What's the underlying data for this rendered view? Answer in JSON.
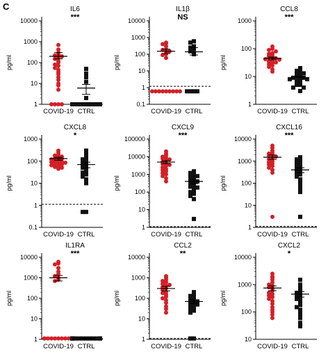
{
  "figure": {
    "panel_letter": "C"
  },
  "chart_data": [
    {
      "type": "scatter",
      "title": "IL6",
      "significance": "***",
      "ylabel": "pg/ml",
      "scale": "log",
      "ylim": [
        1,
        10000
      ],
      "yticks": [
        "1",
        "10",
        "100",
        "1000",
        "10000"
      ],
      "categories": [
        "COVID-19",
        "CTRL"
      ],
      "reference_line": null,
      "series": [
        {
          "name": "COVID-19",
          "color": "#d42027",
          "marker": "circle",
          "values": [
            700,
            420,
            300,
            240,
            220,
            200,
            180,
            150,
            120,
            100,
            80,
            70,
            55,
            45,
            35,
            28,
            20,
            15,
            10,
            8,
            5,
            1,
            1,
            1,
            1
          ],
          "mean": 200,
          "sem": [
            150,
            300
          ]
        },
        {
          "name": "CTRL",
          "color": "#111111",
          "marker": "square",
          "values": [
            50,
            30,
            20,
            12,
            2,
            1,
            1,
            1,
            1,
            1,
            1,
            1,
            1,
            1,
            1,
            1,
            1,
            1,
            1,
            1
          ],
          "mean": 6,
          "sem": [
            3,
            9
          ]
        }
      ]
    },
    {
      "type": "scatter",
      "title": "IL1β",
      "significance": "NS",
      "ylabel": "pg/ml",
      "scale": "log",
      "ylim": [
        0.1,
        10000
      ],
      "yticks": [
        "0.1",
        "1",
        "10",
        "100",
        "1000",
        "10000"
      ],
      "categories": [
        "COVID-19",
        "CTRL"
      ],
      "reference_line": 1.2,
      "series": [
        {
          "name": "COVID-19",
          "color": "#d42027",
          "marker": "circle",
          "values": [
            500,
            450,
            400,
            300,
            200,
            180,
            150,
            120,
            100,
            90,
            60,
            0.6,
            0.6,
            0.6,
            0.6,
            0.6,
            0.6,
            0.6,
            0.6,
            0.6
          ],
          "mean": 150,
          "sem": [
            110,
            200
          ]
        },
        {
          "name": "CTRL",
          "color": "#111111",
          "marker": "square",
          "values": [
            600,
            500,
            300,
            250,
            200,
            150,
            100,
            0.6,
            0.6,
            0.6,
            0.6
          ],
          "mean": 140,
          "sem": [
            90,
            250
          ]
        }
      ]
    },
    {
      "type": "scatter",
      "title": "CCL8",
      "significance": "***",
      "ylabel": "pg/ml",
      "scale": "log",
      "ylim": [
        1,
        1000
      ],
      "yticks": [
        "1",
        "10",
        "100",
        "1000"
      ],
      "categories": [
        "COVID-19",
        "CTRL"
      ],
      "reference_line": null,
      "series": [
        {
          "name": "COVID-19",
          "color": "#d42027",
          "marker": "circle",
          "values": [
            120,
            100,
            90,
            80,
            70,
            65,
            60,
            55,
            50,
            48,
            45,
            42,
            40,
            38,
            35,
            32,
            30,
            28,
            25,
            22,
            18,
            15
          ],
          "mean": 45,
          "sem": [
            40,
            50
          ]
        },
        {
          "name": "CTRL",
          "color": "#111111",
          "marker": "square",
          "values": [
            20,
            18,
            16,
            15,
            14,
            13,
            12,
            11,
            10,
            10,
            9,
            9,
            8,
            8,
            7,
            7,
            6,
            6,
            5,
            5,
            4,
            4,
            3
          ],
          "mean": 9,
          "sem": [
            8,
            10
          ]
        }
      ]
    },
    {
      "type": "scatter",
      "title": "CXCL8",
      "significance": "*",
      "ylabel": "pg/ml",
      "scale": "log",
      "ylim": [
        0.1,
        1000
      ],
      "yticks": [
        "0.1",
        "1",
        "10",
        "100",
        "1000"
      ],
      "categories": [
        "COVID-19",
        "CTRL"
      ],
      "reference_line": 1.1,
      "series": [
        {
          "name": "COVID-19",
          "color": "#d42027",
          "marker": "circle",
          "values": [
            300,
            250,
            200,
            180,
            160,
            150,
            140,
            130,
            120,
            110,
            100,
            95,
            90,
            85,
            80,
            75,
            70,
            65,
            60,
            55,
            50,
            45
          ],
          "mean": 130,
          "sem": [
            110,
            150
          ]
        },
        {
          "name": "CTRL",
          "color": "#111111",
          "marker": "square",
          "values": [
            300,
            200,
            150,
            120,
            100,
            90,
            80,
            70,
            60,
            50,
            40,
            35,
            30,
            25,
            20,
            15,
            10,
            0.5,
            0.5
          ],
          "mean": 70,
          "sem": [
            50,
            90
          ]
        }
      ]
    },
    {
      "type": "scatter",
      "title": "CXCL9",
      "significance": "***",
      "ylabel": "pg/ml",
      "scale": "log",
      "ylim": [
        1,
        100000
      ],
      "yticks": [
        "1",
        "10",
        "100",
        "1000",
        "10000",
        "100000"
      ],
      "categories": [
        "COVID-19",
        "CTRL"
      ],
      "reference_line": 1.1,
      "series": [
        {
          "name": "COVID-19",
          "color": "#d42027",
          "marker": "circle",
          "values": [
            20000,
            15000,
            12000,
            10000,
            9000,
            8000,
            7000,
            6000,
            5000,
            4500,
            4000,
            3500,
            3000,
            2500,
            2000,
            1800,
            1500,
            1200,
            1000,
            800,
            600,
            400
          ],
          "mean": 5000,
          "sem": [
            4000,
            6000
          ]
        },
        {
          "name": "CTRL",
          "color": "#111111",
          "marker": "square",
          "values": [
            1500,
            1200,
            1000,
            900,
            800,
            700,
            600,
            500,
            450,
            400,
            350,
            300,
            250,
            200,
            180,
            150,
            120,
            100,
            80,
            60,
            40,
            3
          ],
          "mean": 400,
          "sem": [
            300,
            500
          ]
        }
      ]
    },
    {
      "type": "scatter",
      "title": "CXCL16",
      "significance": "***",
      "ylabel": "pg/ml",
      "scale": "log",
      "ylim": [
        1,
        10000
      ],
      "yticks": [
        "1",
        "10",
        "100",
        "1000",
        "10000"
      ],
      "categories": [
        "COVID-19",
        "CTRL"
      ],
      "reference_line": 1.1,
      "series": [
        {
          "name": "COVID-19",
          "color": "#d42027",
          "marker": "circle",
          "values": [
            5000,
            4000,
            3000,
            2500,
            2200,
            2000,
            1800,
            1600,
            1400,
            1200,
            1000,
            900,
            800,
            700,
            600,
            500,
            400,
            300,
            3
          ],
          "mean": 1500,
          "sem": [
            1200,
            1900
          ]
        },
        {
          "name": "CTRL",
          "color": "#111111",
          "marker": "square",
          "values": [
            1500,
            1200,
            1000,
            900,
            800,
            700,
            600,
            500,
            450,
            400,
            350,
            300,
            250,
            200,
            150,
            120,
            100,
            80,
            60,
            40,
            3
          ],
          "mean": 400,
          "sem": [
            300,
            500
          ]
        }
      ]
    },
    {
      "type": "scatter",
      "title": "IL1RA",
      "significance": "***",
      "ylabel": "pg/ml",
      "scale": "log",
      "ylim": [
        1,
        10000
      ],
      "yticks": [
        "1",
        "10",
        "100",
        "1000",
        "10000"
      ],
      "categories": [
        "COVID-19",
        "CTRL"
      ],
      "reference_line": 1.1,
      "series": [
        {
          "name": "COVID-19",
          "color": "#d42027",
          "marker": "circle",
          "values": [
            6000,
            5000,
            4500,
            3000,
            2000,
            1500,
            1200,
            1000,
            800,
            700,
            1.1,
            1.1,
            1.1,
            1.1,
            1.1,
            1.1,
            1.1,
            1.1,
            1.1,
            1.1
          ],
          "mean": 1000,
          "sem": [
            700,
            1300
          ]
        },
        {
          "name": "CTRL",
          "color": "#111111",
          "marker": "square",
          "values": [
            1.1,
            1.1,
            1.1,
            1.1,
            1.1,
            1.1,
            1.1,
            1.1,
            1.1,
            1.1,
            1.1,
            1.1
          ],
          "mean": 1.1,
          "sem": [
            1.05,
            1.15
          ]
        }
      ]
    },
    {
      "type": "scatter",
      "title": "CCL2",
      "significance": "**",
      "ylabel": "pg/ml",
      "scale": "log",
      "ylim": [
        1,
        10000
      ],
      "yticks": [
        "1",
        "10",
        "100",
        "1000",
        "10000"
      ],
      "categories": [
        "COVID-19",
        "CTRL"
      ],
      "reference_line": 1.1,
      "series": [
        {
          "name": "COVID-19",
          "color": "#d42027",
          "marker": "circle",
          "values": [
            1200,
            1000,
            800,
            700,
            600,
            500,
            450,
            400,
            350,
            300,
            250,
            200,
            180,
            150,
            120,
            100,
            80,
            60,
            40,
            30,
            20
          ],
          "mean": 300,
          "sem": [
            230,
            380
          ]
        },
        {
          "name": "CTRL",
          "color": "#111111",
          "marker": "square",
          "values": [
            200,
            150,
            130,
            120,
            100,
            90,
            80,
            70,
            60,
            55,
            50,
            45,
            40,
            35,
            30,
            25,
            20,
            1.1,
            1.1
          ],
          "mean": 70,
          "sem": [
            55,
            85
          ]
        }
      ]
    },
    {
      "type": "scatter",
      "title": "CXCL2",
      "significance": "*",
      "ylabel": "pg/ml",
      "scale": "log",
      "ylim": [
        10,
        10000
      ],
      "yticks": [
        "10",
        "100",
        "1000",
        "10000"
      ],
      "categories": [
        "COVID-19",
        "CTRL"
      ],
      "reference_line": null,
      "series": [
        {
          "name": "COVID-19",
          "color": "#d42027",
          "marker": "circle",
          "values": [
            2500,
            2000,
            1800,
            1500,
            1200,
            1000,
            900,
            800,
            700,
            600,
            500,
            450,
            400,
            350,
            300,
            250,
            200,
            150,
            120,
            100,
            80,
            60
          ],
          "mean": 750,
          "sem": [
            600,
            900
          ]
        },
        {
          "name": "CTRL",
          "color": "#111111",
          "marker": "square",
          "values": [
            1500,
            1000,
            800,
            700,
            600,
            500,
            450,
            400,
            350,
            300,
            250,
            200,
            180,
            150,
            120,
            100,
            80,
            60,
            40,
            30
          ],
          "mean": 450,
          "sem": [
            350,
            550
          ]
        }
      ]
    }
  ]
}
